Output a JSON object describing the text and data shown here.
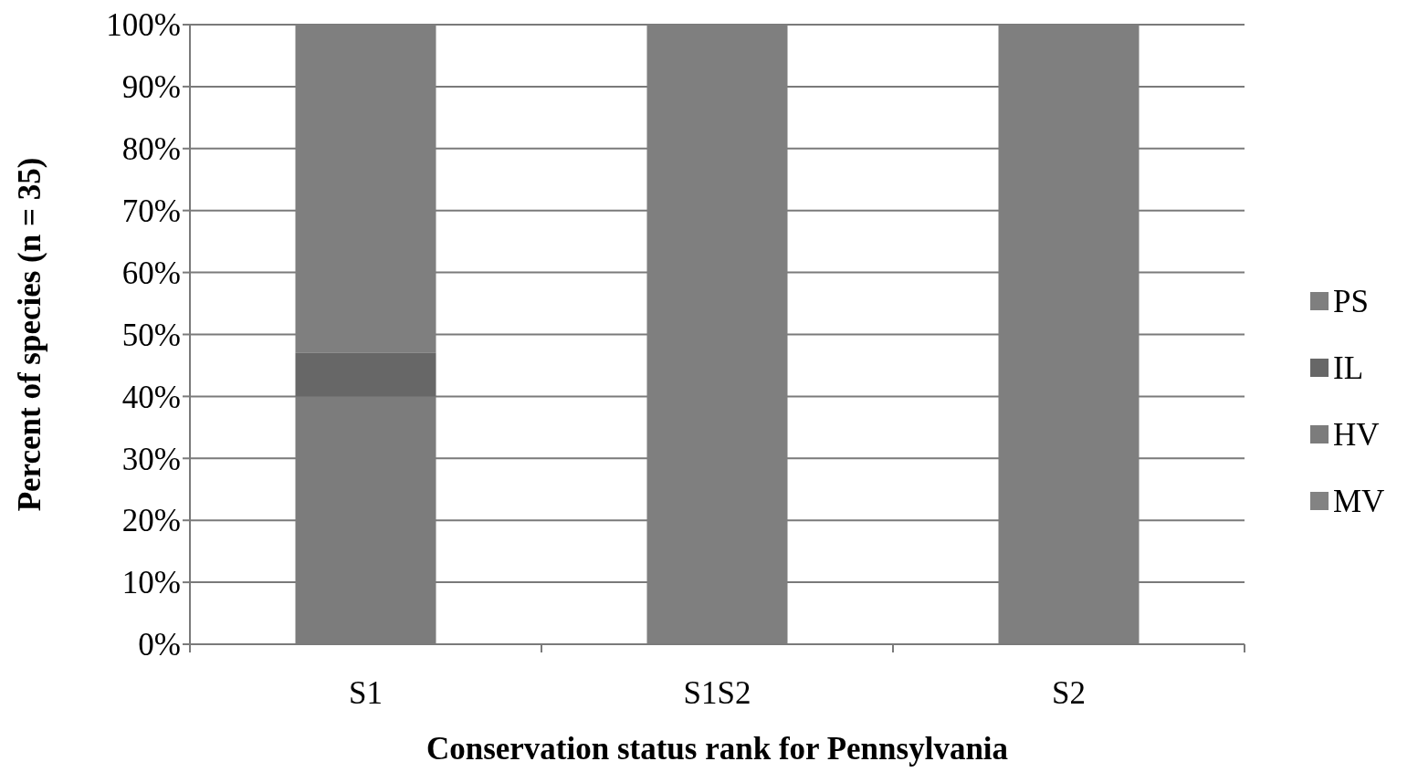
{
  "chart_data": {
    "type": "bar",
    "stacked": true,
    "xlabel": "Conservation status rank for Pennsylvania",
    "ylabel": "Percent of species (n = 35)",
    "categories": [
      "S1",
      "S1S2",
      "S2"
    ],
    "series": [
      {
        "name": "MV",
        "color": "#838383",
        "values": [
          0,
          0,
          0
        ]
      },
      {
        "name": "HV",
        "color": "#7c7c7c",
        "values": [
          40,
          0,
          0
        ]
      },
      {
        "name": "IL",
        "color": "#676767",
        "values": [
          7,
          0,
          0
        ]
      },
      {
        "name": "PS",
        "color": "#7f7f7f",
        "values": [
          53,
          100,
          100
        ]
      }
    ],
    "ylim": [
      0,
      100
    ],
    "yticks": [
      {
        "value": 0,
        "label": "0%"
      },
      {
        "value": 10,
        "label": "10%"
      },
      {
        "value": 20,
        "label": "20%"
      },
      {
        "value": 30,
        "label": "30%"
      },
      {
        "value": 40,
        "label": "40%"
      },
      {
        "value": 50,
        "label": "50%"
      },
      {
        "value": 60,
        "label": "60%"
      },
      {
        "value": 70,
        "label": "70%"
      },
      {
        "value": 80,
        "label": "80%"
      },
      {
        "value": 90,
        "label": "90%"
      },
      {
        "value": 100,
        "label": "100%"
      }
    ],
    "grid": "y",
    "legend": "right"
  }
}
